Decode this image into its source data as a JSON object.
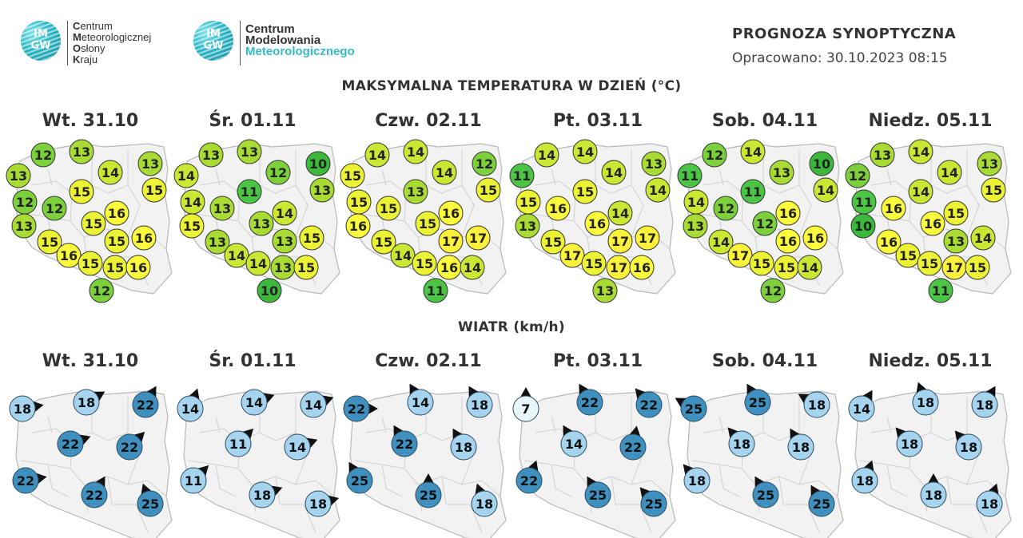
{
  "logos": {
    "cmok": {
      "badge": [
        "IM",
        "GW"
      ],
      "lines": [
        {
          "initial": "C",
          "rest": "entrum"
        },
        {
          "initial": "M",
          "rest": "eteorologicznej"
        },
        {
          "initial": "O",
          "rest": "słony"
        },
        {
          "initial": "K",
          "rest": "raju"
        }
      ]
    },
    "cmm": {
      "badge": [
        "IM",
        "GW"
      ],
      "line1": "Centrum",
      "line2": "Modelowania",
      "line3": "Meteorologicznego"
    }
  },
  "header": {
    "title": "PROGNOZA SYNOPTYCZNA",
    "date": "Opracowano: 30.10.2023 08:15"
  },
  "temperature": {
    "title": "MAKSYMALNA TEMPERATURA W DZIEŃ (°C)",
    "colors": {
      "10": "#3cb83c",
      "11": "#4cc444",
      "12": "#7cd03c",
      "13": "#a8dc34",
      "14": "#cce634",
      "15": "#ecf234",
      "16": "#fcfc3c",
      "17": "#fcf23c"
    },
    "days": [
      {
        "label": "Wt. 31.10",
        "values": [
          12,
          13,
          13,
          13,
          14,
          15,
          15,
          12,
          12,
          16,
          15,
          13,
          15,
          15,
          16,
          16,
          15,
          15,
          16,
          12
        ]
      },
      {
        "label": "Śr. 01.11",
        "values": [
          13,
          13,
          14,
          10,
          12,
          13,
          11,
          14,
          13,
          14,
          13,
          15,
          13,
          13,
          15,
          14,
          14,
          13,
          15,
          10
        ]
      },
      {
        "label": "Czw. 02.11",
        "values": [
          14,
          14,
          15,
          12,
          14,
          15,
          13,
          15,
          15,
          16,
          15,
          16,
          15,
          17,
          17,
          14,
          15,
          16,
          14,
          11
        ]
      },
      {
        "label": "Pt. 03.11",
        "values": [
          14,
          14,
          11,
          13,
          14,
          14,
          15,
          15,
          16,
          14,
          16,
          13,
          15,
          17,
          17,
          17,
          15,
          17,
          16,
          13
        ]
      },
      {
        "label": "Sob. 04.11",
        "values": [
          12,
          14,
          11,
          10,
          13,
          14,
          11,
          14,
          12,
          16,
          12,
          13,
          14,
          16,
          16,
          17,
          15,
          15,
          14,
          12
        ]
      },
      {
        "label": "Niedz. 05.11",
        "values": [
          13,
          14,
          12,
          13,
          14,
          15,
          14,
          11,
          16,
          15,
          16,
          10,
          16,
          13,
          14,
          15,
          15,
          17,
          15,
          11
        ]
      }
    ]
  },
  "wind": {
    "title": "WIATR (km/h)",
    "colors": {
      "7": "#e8f6fa",
      "11": "#a6d4ee",
      "14": "#a6d4ee",
      "18": "#a6d4ee",
      "22": "#3f8fbf",
      "25": "#3f8fbf"
    },
    "days": [
      {
        "label": "Wt. 31.10",
        "stations": [
          {
            "v": 18,
            "dir": 80
          },
          {
            "v": 18,
            "dir": 60
          },
          {
            "v": 22,
            "dir": 30
          },
          {
            "v": 22,
            "dir": 70
          },
          {
            "v": 22,
            "dir": 45
          },
          {
            "v": 22,
            "dir": 80
          },
          {
            "v": 22,
            "dir": 30
          },
          {
            "v": 25,
            "dir": 340
          }
        ]
      },
      {
        "label": "Śr. 01.11",
        "stations": [
          {
            "v": 14,
            "dir": 20
          },
          {
            "v": 14,
            "dir": 70
          },
          {
            "v": 14,
            "dir": 70
          },
          {
            "v": 11,
            "dir": 45
          },
          {
            "v": 14,
            "dir": 70
          },
          {
            "v": 11,
            "dir": 45
          },
          {
            "v": 18,
            "dir": 70
          },
          {
            "v": 18,
            "dir": 75
          }
        ]
      },
      {
        "label": "Czw. 02.11",
        "stations": [
          {
            "v": 22,
            "dir": 90
          },
          {
            "v": 14,
            "dir": 330
          },
          {
            "v": 18,
            "dir": 330
          },
          {
            "v": 22,
            "dir": 330
          },
          {
            "v": 18,
            "dir": 330
          },
          {
            "v": 25,
            "dir": 330
          },
          {
            "v": 25,
            "dir": 0
          },
          {
            "v": 18,
            "dir": 340
          }
        ]
      },
      {
        "label": "Pt. 03.11",
        "stations": [
          {
            "v": 7,
            "dir": 0
          },
          {
            "v": 22,
            "dir": 330
          },
          {
            "v": 22,
            "dir": 320
          },
          {
            "v": 14,
            "dir": 330
          },
          {
            "v": 22,
            "dir": 10
          },
          {
            "v": 22,
            "dir": 20
          },
          {
            "v": 25,
            "dir": 330
          },
          {
            "v": 25,
            "dir": 320
          }
        ]
      },
      {
        "label": "Sob. 04.11",
        "stations": [
          {
            "v": 25,
            "dir": 300
          },
          {
            "v": 25,
            "dir": 330
          },
          {
            "v": 18,
            "dir": 300
          },
          {
            "v": 18,
            "dir": 320
          },
          {
            "v": 18,
            "dir": 330
          },
          {
            "v": 18,
            "dir": 320
          },
          {
            "v": 25,
            "dir": 330
          },
          {
            "v": 25,
            "dir": 330
          }
        ]
      },
      {
        "label": "Niedz. 05.11",
        "stations": [
          {
            "v": 14,
            "dir": 30
          },
          {
            "v": 18,
            "dir": 340
          },
          {
            "v": 18,
            "dir": 30
          },
          {
            "v": 18,
            "dir": 320
          },
          {
            "v": 18,
            "dir": 320
          },
          {
            "v": 18,
            "dir": 20
          },
          {
            "v": 18,
            "dir": 0
          },
          {
            "v": 18,
            "dir": 20
          }
        ]
      }
    ]
  }
}
